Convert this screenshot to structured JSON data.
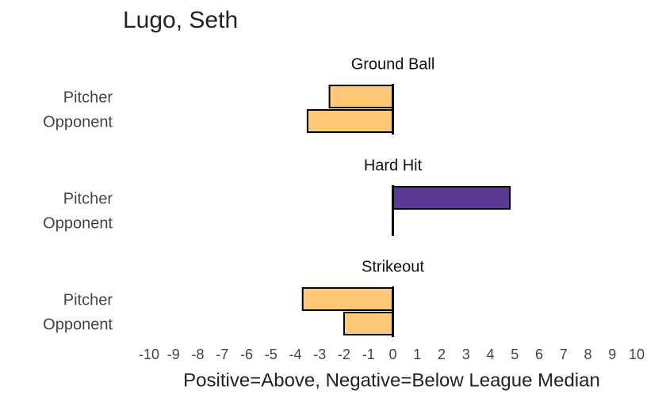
{
  "chart_data": {
    "type": "bar",
    "orientation": "horizontal",
    "title": "Lugo, Seth",
    "xlabel": "Positive=Above, Negative=Below League Median",
    "positive_color": "#5b3a96",
    "negative_color": "#fec877",
    "xlim": [
      -10,
      10
    ],
    "xticks": [
      -10,
      -9,
      -8,
      -7,
      -6,
      -5,
      -4,
      -3,
      -2,
      -1,
      0,
      1,
      2,
      3,
      4,
      5,
      6,
      7,
      8,
      9,
      10
    ],
    "panels": [
      {
        "title": "Ground Ball",
        "categories": [
          "Pitcher",
          "Opponent"
        ],
        "values": [
          -2.6,
          -3.5
        ]
      },
      {
        "title": "Hard Hit",
        "categories": [
          "Pitcher",
          "Opponent"
        ],
        "values": [
          4.8,
          0
        ]
      },
      {
        "title": "Strikeout",
        "categories": [
          "Pitcher",
          "Opponent"
        ],
        "values": [
          -3.7,
          -2.0
        ]
      }
    ]
  }
}
